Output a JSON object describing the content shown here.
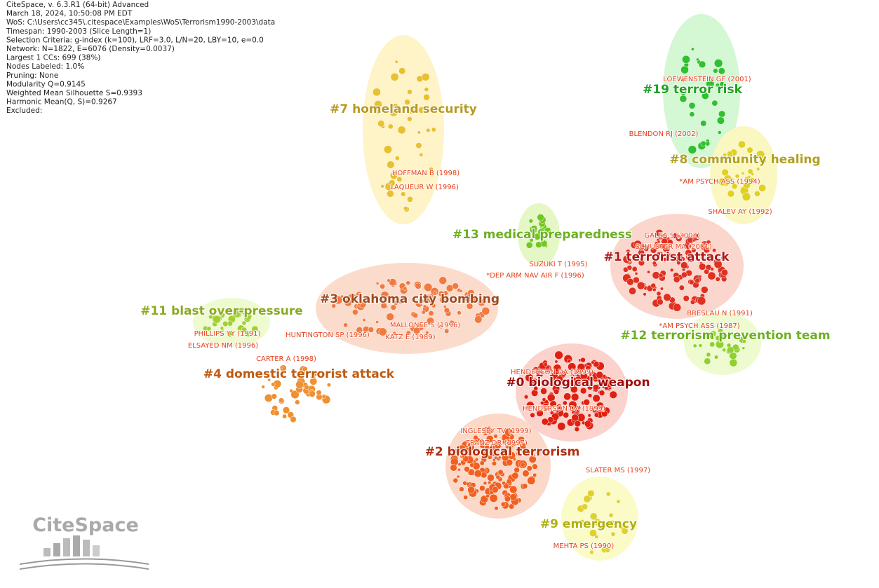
{
  "info": [
    "CiteSpace, v. 6.3.R1 (64-bit) Advanced",
    "March 18, 2024, 10:50:08 PM EDT",
    "WoS: C:\\Users\\cc345\\.citespace\\Examples\\WoS\\Terrorism1990-2003\\data",
    "Timespan: 1990-2003 (Slice Length=1)",
    "Selection Criteria: g-index (k=100), LRF=3.0, L/N=20, LBY=10, e=0.0",
    "Network: N=1822, E=6076 (Density=0.0037)",
    "Largest 1 CCs: 699 (38%)",
    "Nodes Labeled: 1.0%",
    "Pruning: None",
    "Modularity Q=0.9145",
    "Weighted Mean Silhouette S=0.9393",
    "Harmonic Mean(Q, S)=0.9267",
    "Excluded:"
  ],
  "clusters": [
    "#7 homeland security",
    "#19 terror risk",
    "#8 community healing",
    "#13 medical preparedness",
    "#1 terrorist attack",
    "#3 oklahoma city bombing",
    "#11 blast over-pressure",
    "#12 terrorism prevention team",
    "#4 domestic terrorist attack",
    "#0 biological weapon",
    "#2 biological terrorism",
    "#9 emergency"
  ],
  "references": [
    "LOEWENSTEIN GF (2001)",
    "BLENDON RJ (2002)",
    "*AM PSYCH ASS (1994)",
    "SHALEV AY (1992)",
    "HOFFMAN B (1998)",
    "LAQUEUR W (1996)",
    "GALEA S (2002)",
    "SCHUSTER MA (2001)",
    "SUZUKI T (1995)",
    "*DEP ARM NAV AIR F (1996)",
    "BRESLAU N (1991)",
    "*AM PSYCH ASS (1987)",
    "PHILLIPS YY (1991)",
    "ELSAYED NM (1996)",
    "HUNTINGTON SP (1996)",
    "MALLONEE S (1996)",
    "KATZ E (1989)",
    "CARTER A (1998)",
    "HENDERSON DA (1999)",
    "HENDERSON DA (1999)",
    "INGLESBY TV (1999)",
    "FRANZ DR (1997)",
    "SLATER MS (1997)",
    "MEHTA PS (1990)"
  ],
  "logo": "CiteSpace"
}
